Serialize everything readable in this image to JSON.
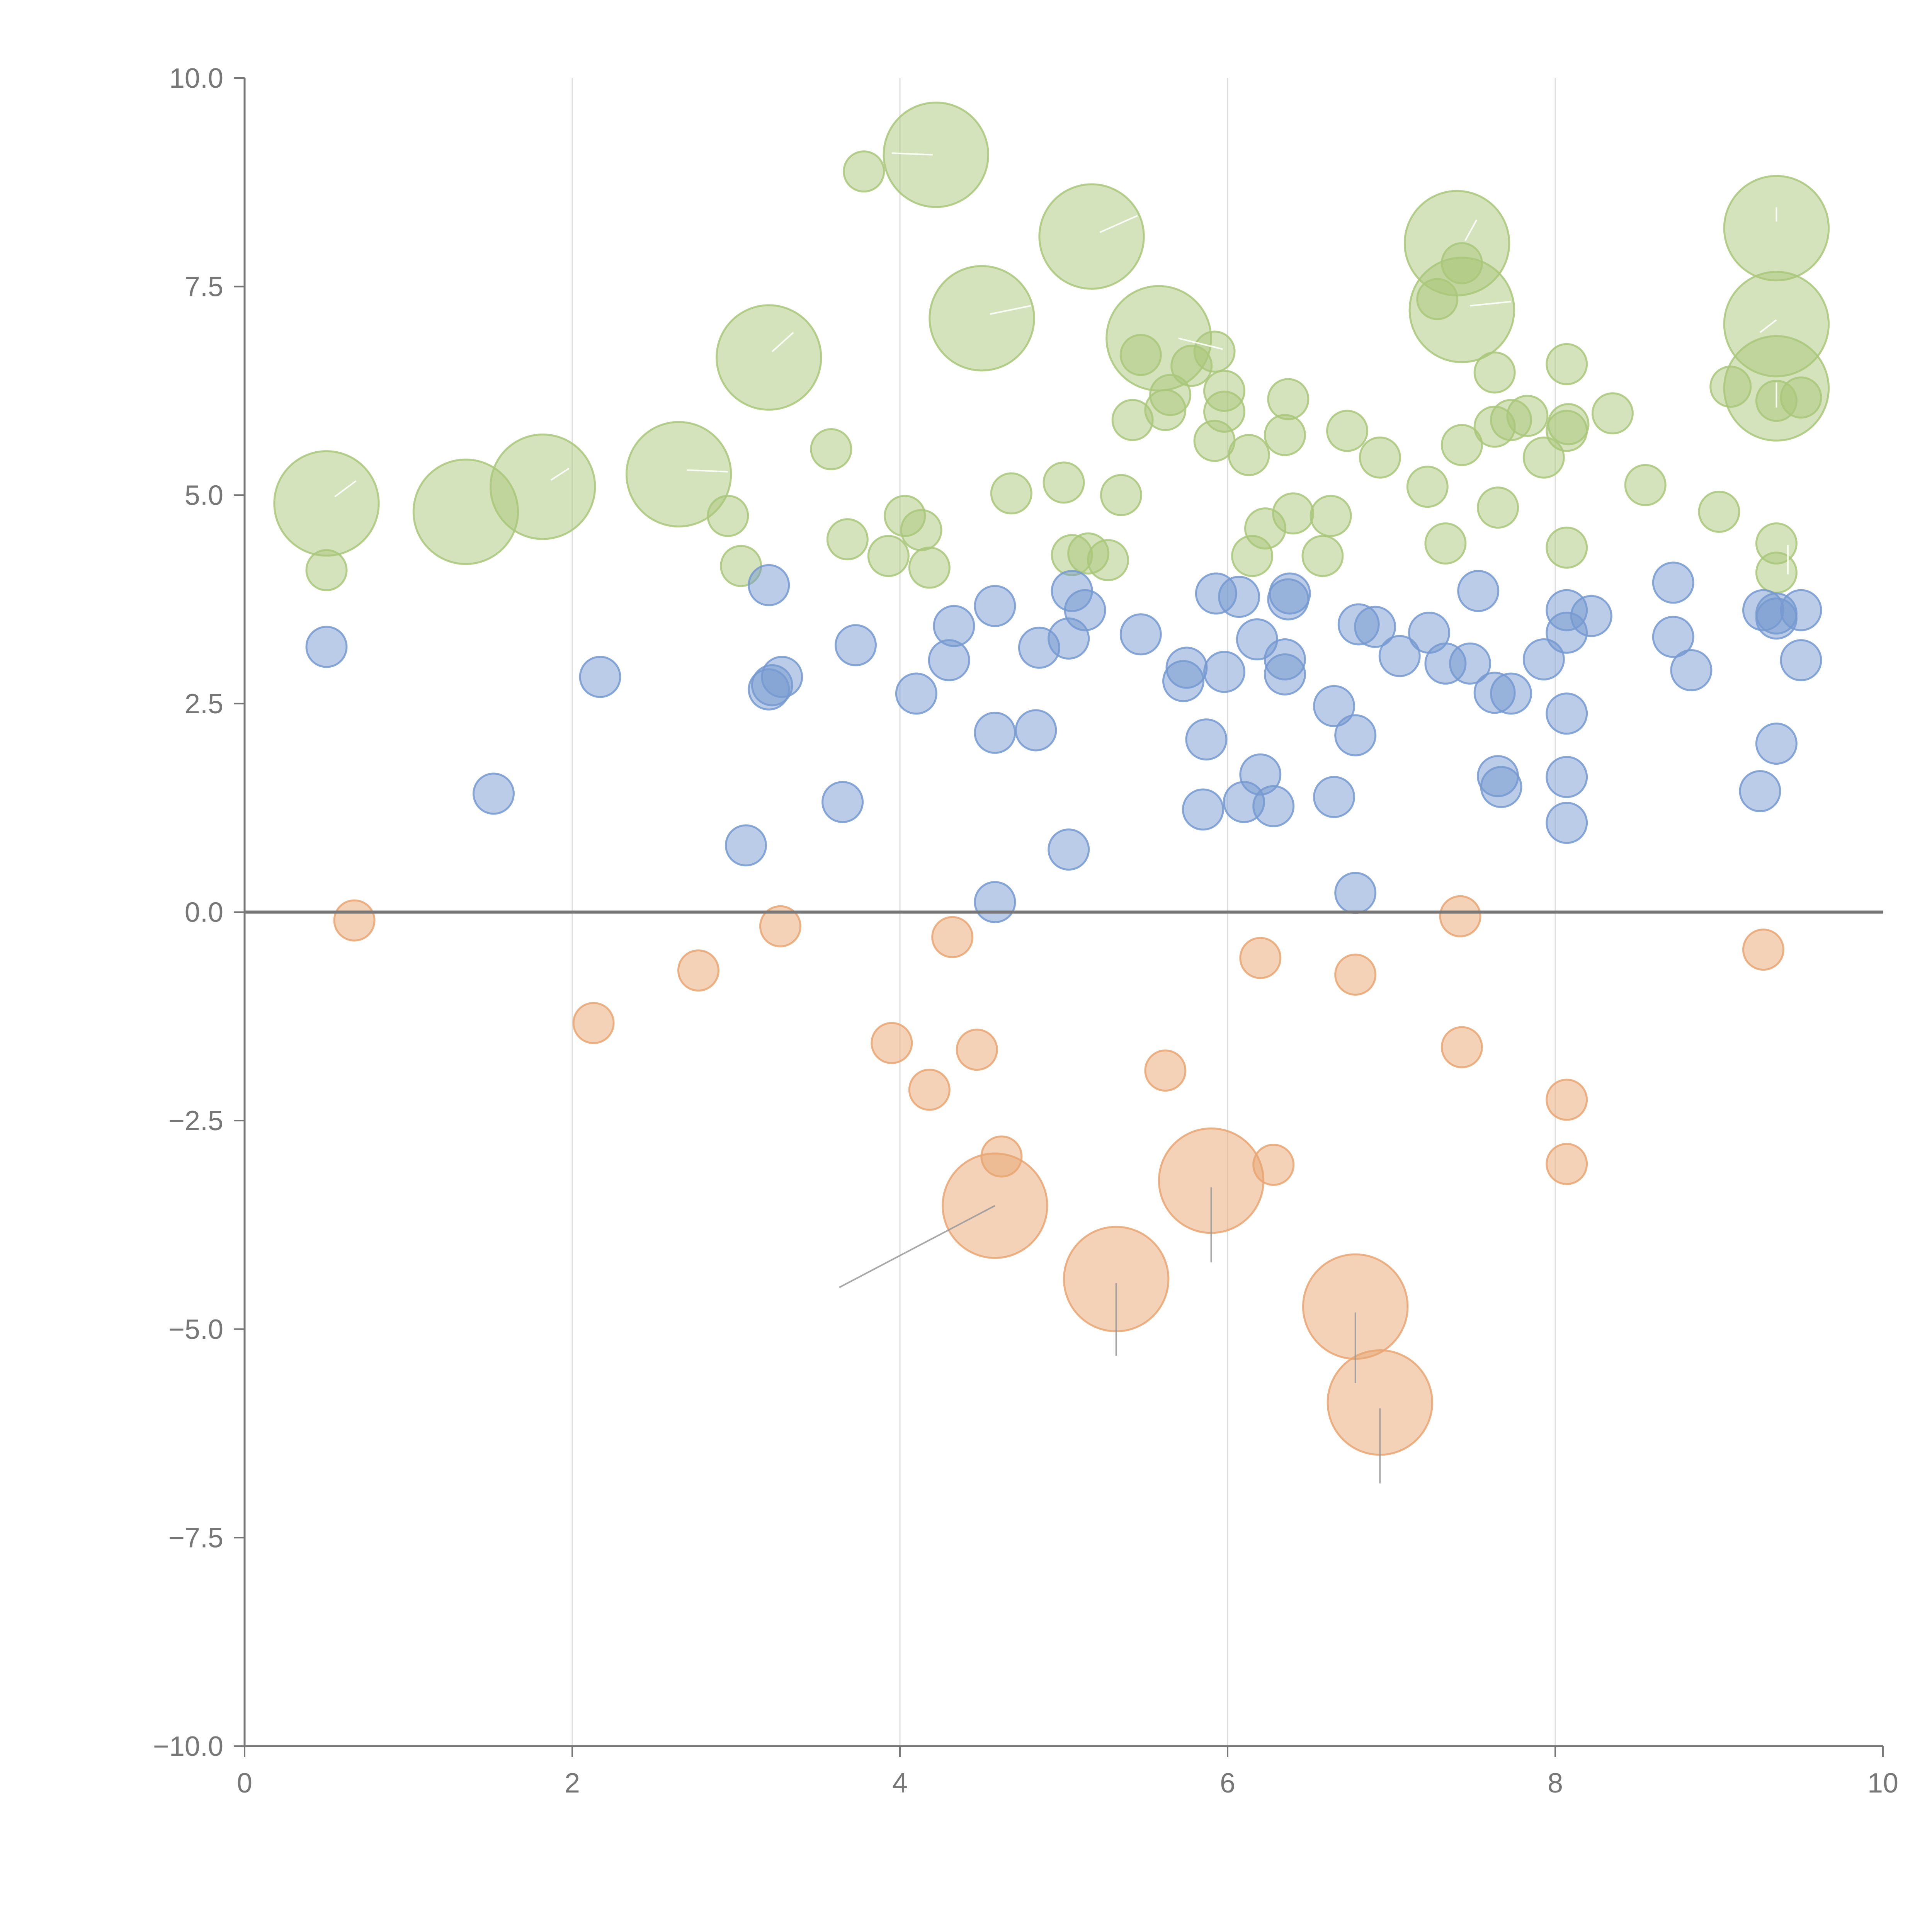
{
  "chart_data": {
    "type": "scatter",
    "title": "",
    "xlabel": "",
    "ylabel": "",
    "xlim": [
      0,
      10
    ],
    "ylim": [
      -10,
      10
    ],
    "grid": "vertical",
    "x_ticks": [
      "0",
      "2",
      "4",
      "6",
      "8",
      "10"
    ],
    "y_ticks": [
      "10.0",
      "7.5",
      "5.0",
      "2.5",
      "0.0",
      "−2.5",
      "−5.0",
      "−7.5",
      "−10.0"
    ],
    "x_tick_values": [
      0,
      2,
      4,
      6,
      8,
      10
    ],
    "y_tick_values": [
      10,
      7.5,
      5,
      2.5,
      0,
      -2.5,
      -5,
      -7.5,
      -10
    ],
    "reference_line": {
      "y": 0
    },
    "series": [
      {
        "name": "green",
        "color": "#a9c77a",
        "points": [
          [
            0.5,
            4.9,
            2.6
          ],
          [
            0.5,
            4.1,
            1.0
          ],
          [
            1.35,
            4.8,
            2.6
          ],
          [
            1.82,
            5.1,
            2.6
          ],
          [
            2.65,
            5.25,
            2.6
          ],
          [
            2.95,
            4.75,
            1.0
          ],
          [
            3.03,
            4.15,
            1.0
          ],
          [
            3.2,
            6.65,
            2.6
          ],
          [
            3.58,
            5.55,
            1.0
          ],
          [
            3.68,
            4.47,
            1.0
          ],
          [
            3.78,
            8.88,
            1.0
          ],
          [
            3.93,
            4.27,
            1.0
          ],
          [
            4.03,
            4.75,
            1.0
          ],
          [
            4.13,
            4.58,
            1.0
          ],
          [
            4.18,
            4.13,
            1.0
          ],
          [
            4.22,
            9.08,
            2.6
          ],
          [
            4.5,
            7.12,
            2.6
          ],
          [
            4.68,
            5.02,
            1.0
          ],
          [
            5.0,
            5.15,
            1.0
          ],
          [
            5.05,
            4.28,
            1.0
          ],
          [
            5.15,
            4.3,
            1.0
          ],
          [
            5.17,
            8.1,
            2.6
          ],
          [
            5.27,
            4.22,
            1.0
          ],
          [
            5.35,
            5.0,
            1.0
          ],
          [
            5.42,
            5.9,
            1.0
          ],
          [
            5.47,
            6.68,
            1.0
          ],
          [
            5.58,
            6.88,
            2.6
          ],
          [
            5.62,
            6.02,
            1.0
          ],
          [
            5.65,
            6.2,
            1.0
          ],
          [
            5.78,
            6.55,
            1.0
          ],
          [
            5.92,
            6.72,
            1.0
          ],
          [
            5.92,
            5.65,
            1.0
          ],
          [
            5.98,
            6.25,
            1.0
          ],
          [
            5.98,
            6.0,
            1.0
          ],
          [
            6.13,
            5.48,
            1.0
          ],
          [
            6.15,
            4.27,
            1.0
          ],
          [
            6.23,
            4.6,
            1.0
          ],
          [
            6.35,
            5.72,
            1.0
          ],
          [
            6.37,
            6.15,
            1.0
          ],
          [
            6.4,
            4.78,
            1.0
          ],
          [
            6.58,
            4.27,
            1.0
          ],
          [
            6.63,
            4.75,
            1.0
          ],
          [
            6.73,
            5.77,
            1.0
          ],
          [
            6.93,
            5.45,
            1.0
          ],
          [
            7.22,
            5.1,
            1.0
          ],
          [
            7.28,
            7.35,
            1.0
          ],
          [
            7.33,
            4.42,
            1.0
          ],
          [
            7.4,
            8.02,
            2.6
          ],
          [
            7.43,
            5.6,
            1.0
          ],
          [
            7.43,
            7.78,
            1.0
          ],
          [
            7.43,
            7.22,
            2.6
          ],
          [
            7.63,
            6.47,
            1.0
          ],
          [
            7.63,
            5.82,
            1.0
          ],
          [
            7.65,
            4.85,
            1.0
          ],
          [
            7.73,
            5.9,
            1.0
          ],
          [
            7.83,
            5.95,
            1.0
          ],
          [
            7.93,
            5.45,
            1.0
          ],
          [
            8.07,
            6.57,
            1.0
          ],
          [
            8.07,
            5.77,
            1.0
          ],
          [
            8.07,
            4.37,
            1.0
          ],
          [
            8.08,
            5.85,
            1.0
          ],
          [
            8.35,
            5.98,
            1.0
          ],
          [
            8.55,
            5.12,
            1.0
          ],
          [
            9.0,
            4.8,
            1.0
          ],
          [
            9.07,
            6.3,
            1.0
          ],
          [
            9.35,
            8.2,
            2.6
          ],
          [
            9.35,
            7.05,
            2.6
          ],
          [
            9.35,
            6.28,
            2.6
          ],
          [
            9.35,
            6.13,
            1.0
          ],
          [
            9.35,
            4.42,
            1.0
          ],
          [
            9.35,
            4.07,
            1.0
          ],
          [
            9.5,
            6.17,
            1.0
          ]
        ]
      },
      {
        "name": "blue",
        "color": "#7599d0",
        "points": [
          [
            0.5,
            3.18,
            1.0
          ],
          [
            1.52,
            1.42,
            1.0
          ],
          [
            2.17,
            2.82,
            1.0
          ],
          [
            3.06,
            0.8,
            1.0
          ],
          [
            3.2,
            3.92,
            1.0
          ],
          [
            3.2,
            2.67,
            1.0
          ],
          [
            3.22,
            2.72,
            1.0
          ],
          [
            3.28,
            2.82,
            1.0
          ],
          [
            3.65,
            1.32,
            1.0
          ],
          [
            3.73,
            3.2,
            1.0
          ],
          [
            4.1,
            2.62,
            1.0
          ],
          [
            4.3,
            3.02,
            1.0
          ],
          [
            4.33,
            3.43,
            1.0
          ],
          [
            4.58,
            0.12,
            1.0
          ],
          [
            4.58,
            2.15,
            1.0
          ],
          [
            4.58,
            3.67,
            1.0
          ],
          [
            4.83,
            2.18,
            1.0
          ],
          [
            4.85,
            3.17,
            1.0
          ],
          [
            5.03,
            0.75,
            1.0
          ],
          [
            5.03,
            3.28,
            1.0
          ],
          [
            5.05,
            3.85,
            1.0
          ],
          [
            5.13,
            3.62,
            1.0
          ],
          [
            5.47,
            3.33,
            1.0
          ],
          [
            5.73,
            2.77,
            1.0
          ],
          [
            5.75,
            2.93,
            1.0
          ],
          [
            5.85,
            1.23,
            1.0
          ],
          [
            5.87,
            2.07,
            1.0
          ],
          [
            5.93,
            3.82,
            1.0
          ],
          [
            5.98,
            2.88,
            1.0
          ],
          [
            6.07,
            3.78,
            1.0
          ],
          [
            6.1,
            1.32,
            1.0
          ],
          [
            6.18,
            3.27,
            1.0
          ],
          [
            6.2,
            1.65,
            1.0
          ],
          [
            6.28,
            1.27,
            1.0
          ],
          [
            6.35,
            2.85,
            1.0
          ],
          [
            6.35,
            3.03,
            1.0
          ],
          [
            6.37,
            3.75,
            1.0
          ],
          [
            6.38,
            3.82,
            1.0
          ],
          [
            6.65,
            1.38,
            1.0
          ],
          [
            6.65,
            2.47,
            1.0
          ],
          [
            6.78,
            0.23,
            1.0
          ],
          [
            6.78,
            2.12,
            1.0
          ],
          [
            6.8,
            3.45,
            1.0
          ],
          [
            6.9,
            3.42,
            1.0
          ],
          [
            7.05,
            3.07,
            1.0
          ],
          [
            7.23,
            3.35,
            1.0
          ],
          [
            7.33,
            2.98,
            1.0
          ],
          [
            7.48,
            2.98,
            1.0
          ],
          [
            7.53,
            3.85,
            1.0
          ],
          [
            7.63,
            2.63,
            1.0
          ],
          [
            7.65,
            1.63,
            1.0
          ],
          [
            7.67,
            1.5,
            1.0
          ],
          [
            7.73,
            2.62,
            1.0
          ],
          [
            7.93,
            3.03,
            1.0
          ],
          [
            8.07,
            1.07,
            1.0
          ],
          [
            8.07,
            1.62,
            1.0
          ],
          [
            8.07,
            2.38,
            1.0
          ],
          [
            8.07,
            3.35,
            1.0
          ],
          [
            8.07,
            3.62,
            1.0
          ],
          [
            8.22,
            3.55,
            1.0
          ],
          [
            8.72,
            3.95,
            1.0
          ],
          [
            8.72,
            3.3,
            1.0
          ],
          [
            8.83,
            2.9,
            1.0
          ],
          [
            9.25,
            1.45,
            1.0
          ],
          [
            9.27,
            3.62,
            1.0
          ],
          [
            9.35,
            2.02,
            1.0
          ],
          [
            9.35,
            3.58,
            1.0
          ],
          [
            9.35,
            3.52,
            1.0
          ],
          [
            9.5,
            3.02,
            1.0
          ],
          [
            9.5,
            3.62,
            1.0
          ]
        ]
      },
      {
        "name": "orange",
        "color": "#e8a672",
        "points": [
          [
            0.67,
            -0.1,
            1.0
          ],
          [
            2.13,
            -1.33,
            1.0
          ],
          [
            2.77,
            -0.7,
            1.0
          ],
          [
            3.27,
            -0.17,
            1.0
          ],
          [
            3.95,
            -1.57,
            1.0
          ],
          [
            4.18,
            -2.13,
            1.0
          ],
          [
            4.32,
            -0.3,
            1.0
          ],
          [
            4.47,
            -1.65,
            1.0
          ],
          [
            4.58,
            -3.52,
            2.6
          ],
          [
            4.62,
            -2.93,
            1.0
          ],
          [
            5.32,
            -4.4,
            2.6
          ],
          [
            5.62,
            -1.9,
            1.0
          ],
          [
            5.9,
            -3.22,
            2.6
          ],
          [
            6.2,
            -0.55,
            1.0
          ],
          [
            6.28,
            -3.03,
            1.0
          ],
          [
            6.78,
            -0.75,
            1.0
          ],
          [
            6.78,
            -4.73,
            2.6
          ],
          [
            6.93,
            -5.88,
            2.6
          ],
          [
            7.42,
            -0.05,
            1.0
          ],
          [
            7.43,
            -1.62,
            1.0
          ],
          [
            8.07,
            -2.25,
            1.0
          ],
          [
            8.07,
            -3.02,
            1.0
          ],
          [
            9.27,
            -0.45,
            1.0
          ]
        ]
      }
    ],
    "leader_lines": [
      {
        "color": "#999999",
        "segments": [
          [
            4.58,
            -3.52,
            3.63,
            -4.5
          ],
          [
            5.32,
            -4.45,
            5.32,
            -5.32
          ],
          [
            5.9,
            -3.3,
            5.9,
            -4.2
          ],
          [
            6.78,
            -4.8,
            6.78,
            -5.65
          ],
          [
            6.93,
            -5.95,
            6.93,
            -6.85
          ]
        ]
      },
      {
        "color": "#ffffff",
        "segments": [
          [
            0.55,
            4.98,
            0.68,
            5.17
          ],
          [
            1.87,
            5.18,
            1.98,
            5.32
          ],
          [
            2.7,
            5.3,
            2.95,
            5.28
          ],
          [
            3.22,
            6.72,
            3.35,
            6.95
          ],
          [
            4.2,
            9.08,
            3.95,
            9.1
          ],
          [
            4.55,
            7.17,
            4.8,
            7.27
          ],
          [
            5.22,
            8.15,
            5.45,
            8.35
          ],
          [
            5.7,
            6.88,
            5.97,
            6.75
          ],
          [
            7.45,
            8.05,
            7.52,
            8.3
          ],
          [
            7.48,
            7.27,
            7.73,
            7.32
          ],
          [
            9.35,
            8.28,
            9.35,
            8.45
          ],
          [
            9.35,
            7.1,
            9.25,
            6.95
          ],
          [
            9.35,
            6.35,
            9.35,
            6.05
          ],
          [
            9.42,
            4.4,
            9.42,
            4.05
          ]
        ]
      }
    ]
  }
}
